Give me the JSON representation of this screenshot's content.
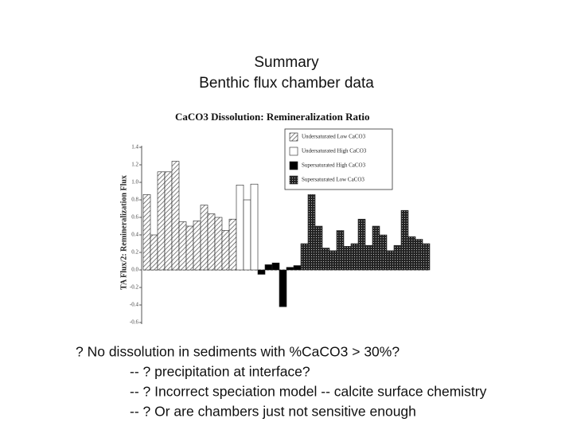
{
  "slide": {
    "title": "Summary",
    "subtitle": "Benthic flux chamber data",
    "bullets": [
      "? No dissolution in sediments with %CaCO3 > 30%?",
      "-- ? precipitation at interface?",
      "-- ? Incorrect speciation model -- calcite surface chemistry",
      "-- ? Or are chambers just not sensitive enough"
    ]
  },
  "chart_data": {
    "type": "bar",
    "title": "CaCO3 Dissolution: Remineralization Ratio",
    "y_label": "TA Flux/2: Remineralization Flux",
    "categories": [
      null,
      null,
      null,
      null,
      null,
      null,
      null,
      null,
      null,
      null,
      null,
      null,
      null,
      null,
      null,
      null,
      null,
      null,
      null,
      null,
      null,
      null,
      null,
      null,
      null,
      null,
      null,
      null,
      null,
      null,
      null,
      null,
      null,
      null,
      null,
      null,
      null,
      null,
      null,
      null
    ],
    "series": [
      {
        "name": "Undersaturated Low CaCO3",
        "color": "#555555",
        "pattern": "hatch",
        "values": [
          0.86,
          0.4,
          1.12,
          1.12,
          1.24,
          0.55,
          0.5,
          0.56,
          0.74,
          0.64,
          0.6,
          0.45,
          0.58,
          null,
          null,
          null,
          null,
          null,
          null,
          null,
          null,
          null,
          null,
          null,
          null,
          null,
          null,
          null,
          null,
          null,
          null,
          null,
          null,
          null,
          null,
          null,
          null,
          null,
          null,
          null
        ]
      },
      {
        "name": "Undersaturated High CaCO3",
        "color": "#ffffff",
        "pattern": "none",
        "values": [
          null,
          null,
          null,
          null,
          null,
          null,
          null,
          null,
          null,
          null,
          null,
          null,
          null,
          0.97,
          0.8,
          0.98,
          null,
          null,
          null,
          null,
          null,
          null,
          null,
          null,
          null,
          null,
          null,
          null,
          null,
          null,
          null,
          null,
          null,
          null,
          null,
          null,
          null,
          null,
          null,
          null
        ]
      },
      {
        "name": "Supersaturated High CaCO3",
        "color": "#000000",
        "pattern": "solid",
        "values": [
          null,
          null,
          null,
          null,
          null,
          null,
          null,
          null,
          null,
          null,
          null,
          null,
          null,
          null,
          null,
          null,
          -0.05,
          0.06,
          0.08,
          -0.42,
          0.03,
          0.05,
          null,
          null,
          null,
          null,
          null,
          null,
          null,
          null,
          null,
          null,
          null,
          null,
          null,
          null,
          null,
          null,
          null,
          null
        ]
      },
      {
        "name": "Supersaturated Low CaCO3",
        "color": "#222222",
        "pattern": "dots",
        "values": [
          null,
          null,
          null,
          null,
          null,
          null,
          null,
          null,
          null,
          null,
          null,
          null,
          null,
          null,
          null,
          null,
          null,
          null,
          null,
          null,
          null,
          null,
          0.3,
          0.86,
          0.5,
          0.25,
          0.22,
          0.45,
          0.27,
          0.3,
          0.58,
          0.28,
          0.5,
          0.4,
          0.22,
          0.28,
          0.68,
          0.38,
          0.35,
          0.3
        ]
      }
    ],
    "ylim": [
      -0.6,
      1.4
    ],
    "yticks": [
      -0.6,
      -0.4,
      -0.2,
      {
        "value": 0,
        "label": "0.0"
      },
      0.2,
      0.4,
      0.6,
      0.8,
      {
        "value": 1,
        "label": "1.0"
      },
      1.2,
      1.4
    ],
    "legend": "upper-right"
  }
}
